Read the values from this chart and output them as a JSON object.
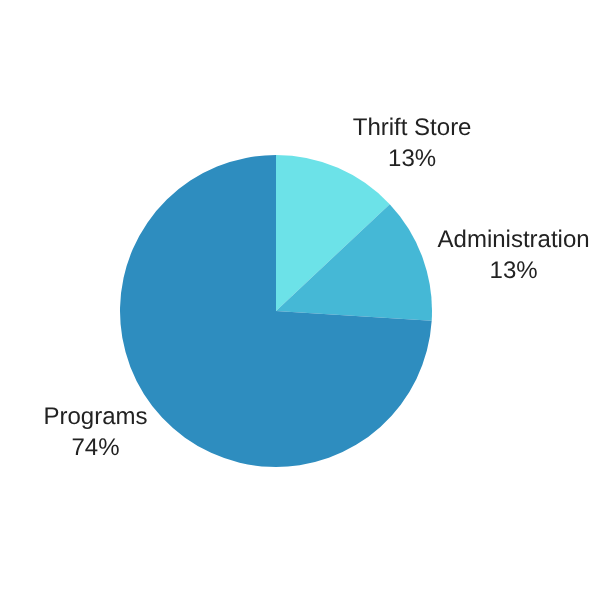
{
  "chart_data": {
    "type": "pie",
    "categories": [
      "Thrift Store",
      "Administration",
      "Programs"
    ],
    "values": [
      13,
      13,
      74
    ],
    "colors": [
      "#6ce2e8",
      "#45b8d6",
      "#2e8dbf"
    ],
    "value_labels": [
      "13%",
      "13%",
      "74%"
    ],
    "legend": false
  }
}
